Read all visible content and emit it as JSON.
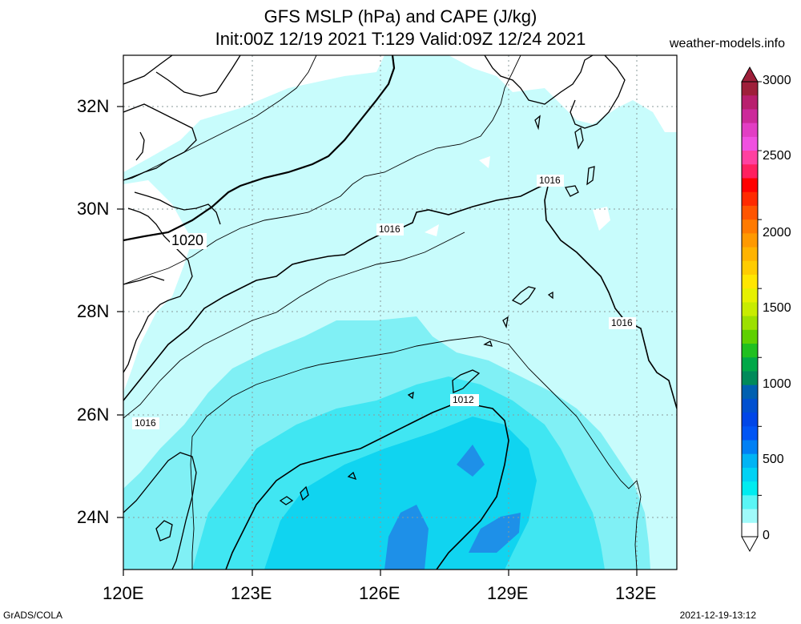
{
  "title": {
    "line1": "GFS MSLP (hPa) and CAPE (J/kg)",
    "line2": "Init:00Z 12/19 2021 T:129 Valid:09Z 12/24 2021"
  },
  "site": "weather-models.info",
  "footer": {
    "left": "GrADS/COLA",
    "right": "2021-12-19-13:12"
  },
  "axes": {
    "lat_labels": [
      "32N",
      "30N",
      "28N",
      "26N",
      "24N"
    ],
    "lon_labels": [
      "120E",
      "123E",
      "126E",
      "129E",
      "132E"
    ]
  },
  "isobar_labels": [
    "1020",
    "1016",
    "1016",
    "1016",
    "1016",
    "1012"
  ],
  "colorbar": {
    "labels": [
      "3000",
      "2500",
      "2000",
      "1500",
      "1000",
      "500",
      "0"
    ],
    "colors": [
      "#9e1f3a",
      "#b81f6e",
      "#cc2a9a",
      "#e23ec4",
      "#f050e0",
      "#ff40a0",
      "#ff2060",
      "#ff0000",
      "#ff2a00",
      "#ff5500",
      "#ff7a00",
      "#ff9900",
      "#ffb300",
      "#ffcc00",
      "#ffe600",
      "#e6f000",
      "#c8ec00",
      "#9ce000",
      "#5fd000",
      "#20c020",
      "#00a848",
      "#008a5a",
      "#0060b0",
      "#0050d0",
      "#0046e8",
      "#0055f5",
      "#0080f5",
      "#00b4f5",
      "#00d2f5",
      "#00ecf0",
      "#5af5f5",
      "#a0fafa",
      "#ffffff"
    ]
  }
}
